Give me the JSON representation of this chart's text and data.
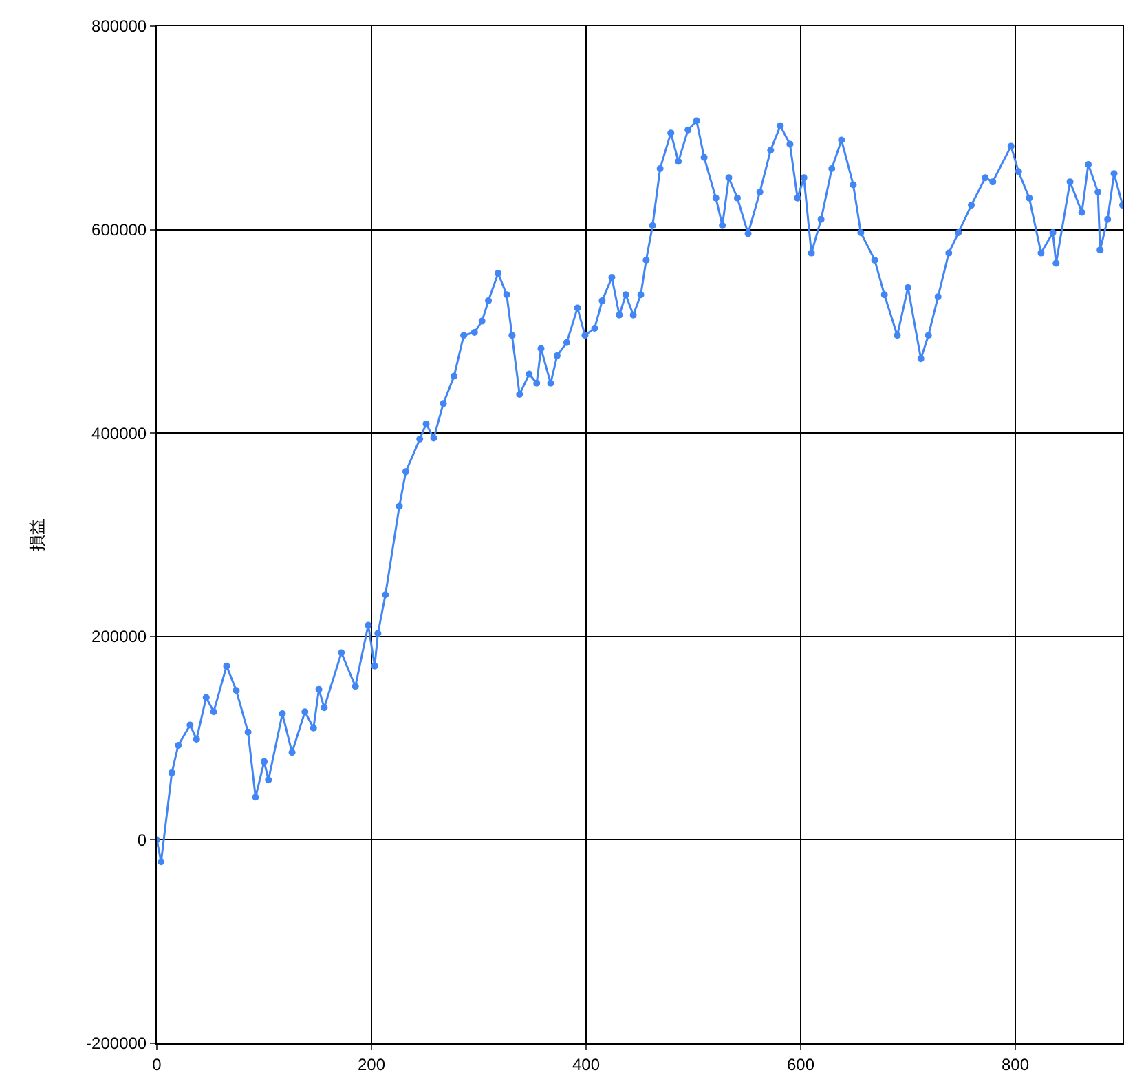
{
  "chart_data": {
    "type": "line",
    "ylabel": "損益",
    "marker": "circle",
    "grid": true,
    "xlim": [
      0,
      900
    ],
    "xticks": [
      0,
      200,
      400,
      600,
      800
    ],
    "ylim": [
      -200000,
      800000
    ],
    "yticks": [
      -200000,
      0,
      200000,
      400000,
      600000,
      800000
    ],
    "series": [
      {
        "color": "#4285f4",
        "x": [
          0,
          4,
          14,
          20,
          31,
          37,
          46,
          53,
          65,
          74,
          85,
          92,
          100,
          104,
          117,
          126,
          138,
          146,
          151,
          156,
          172,
          185,
          197,
          203,
          206,
          213,
          226,
          232,
          245,
          251,
          258,
          267,
          277,
          286,
          296,
          303,
          309,
          318,
          326,
          331,
          338,
          347,
          354,
          358,
          367,
          373,
          382,
          392,
          399,
          408,
          415,
          424,
          431,
          437,
          444,
          451,
          456,
          462,
          469,
          479,
          486,
          495,
          503,
          510,
          521,
          527,
          533,
          541,
          551,
          562,
          572,
          581,
          590,
          597,
          603,
          610,
          619,
          629,
          638,
          649,
          656,
          669,
          678,
          690,
          700,
          712,
          719,
          728,
          738,
          747,
          759,
          772,
          779,
          796,
          803,
          813,
          824,
          835,
          838,
          851,
          862,
          868,
          877,
          879,
          886,
          892,
          900
        ],
        "values": [
          0,
          -21500,
          66000,
          93000,
          113000,
          99000,
          140000,
          126000,
          171000,
          147000,
          106000,
          42000,
          77000,
          59000,
          124000,
          86000,
          126000,
          110000,
          148000,
          130000,
          184000,
          151000,
          211000,
          171000,
          203000,
          241000,
          328000,
          362000,
          394000,
          409000,
          395000,
          429000,
          456000,
          496000,
          499000,
          510000,
          530000,
          557000,
          536000,
          496000,
          438000,
          458000,
          449000,
          483000,
          449000,
          476000,
          489000,
          523000,
          496000,
          503000,
          530000,
          553000,
          516000,
          536000,
          516000,
          536000,
          570000,
          604000,
          660000,
          695000,
          667000,
          698000,
          707000,
          671000,
          631000,
          604000,
          651000,
          631000,
          596000,
          637000,
          678000,
          702000,
          684000,
          631000,
          651000,
          577000,
          610000,
          660000,
          688000,
          644000,
          597000,
          570000,
          536000,
          496000,
          543000,
          473000,
          496000,
          534000,
          577000,
          597000,
          624000,
          651000,
          647000,
          682000,
          657000,
          631000,
          577000,
          597000,
          567000,
          647000,
          617000,
          664000,
          637000,
          580000,
          610000,
          655000,
          624000
        ]
      }
    ]
  }
}
